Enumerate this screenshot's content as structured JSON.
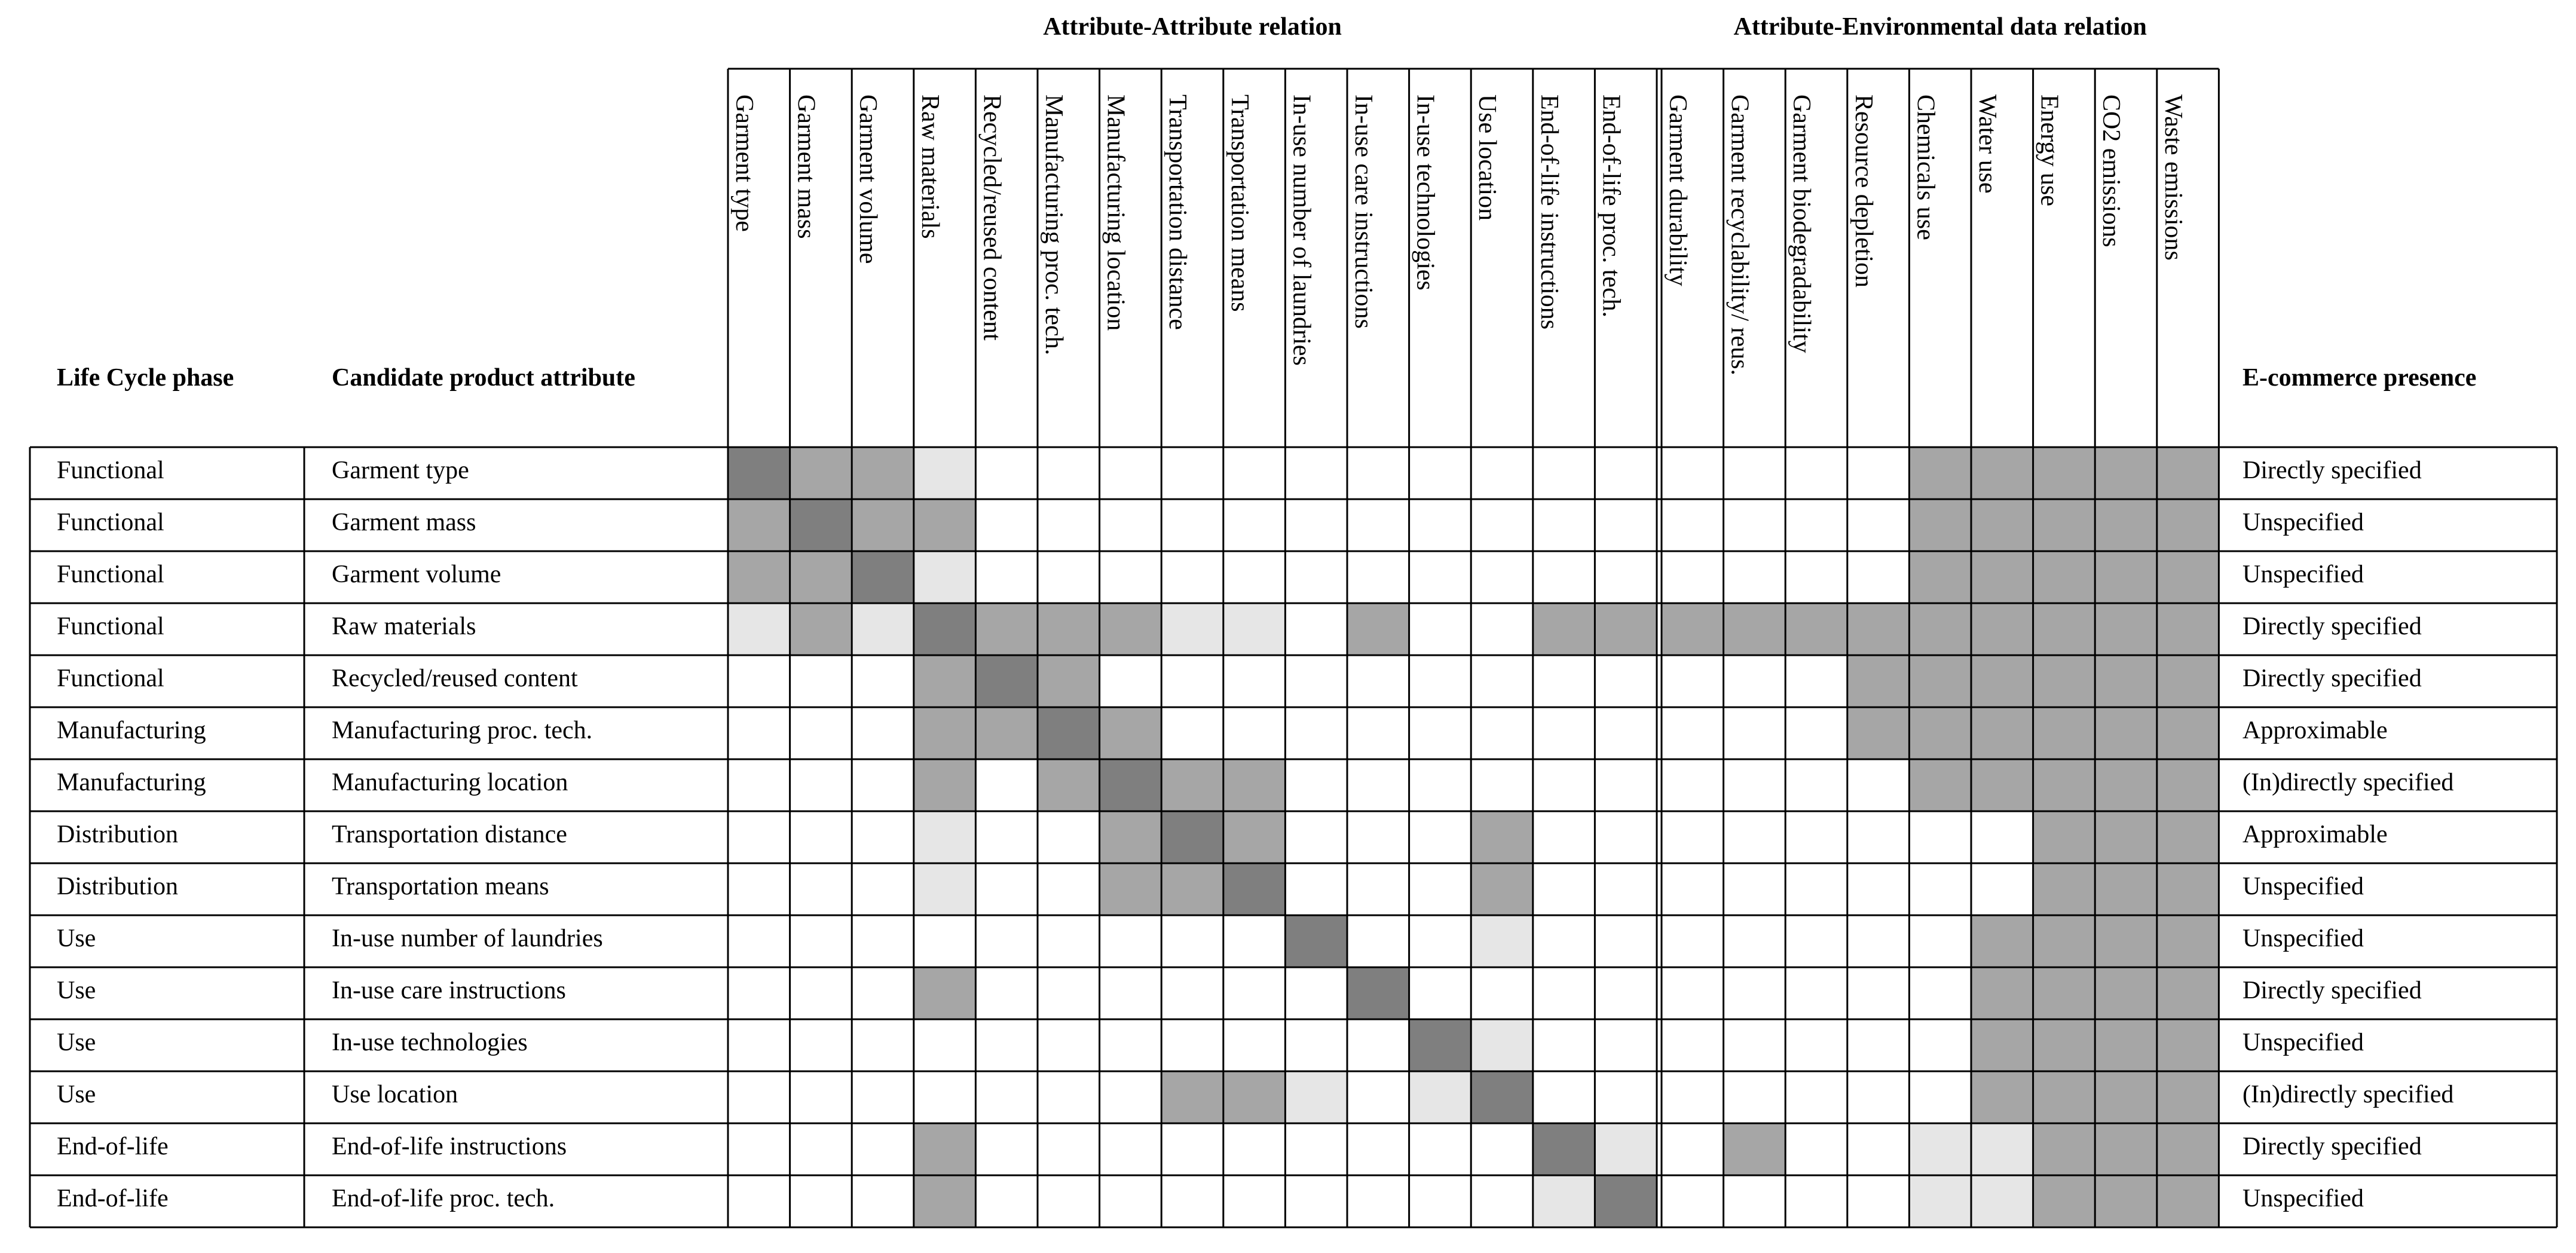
{
  "header": {
    "group_titles": [
      "Attribute-Attribute relation",
      "Attribute-Environmental data relation"
    ],
    "row_headers": [
      "Life Cycle phase",
      "Candidate product attribute"
    ],
    "last_header": "E-commerce presence",
    "attribute_columns": [
      "Garment type",
      "Garment mass",
      "Garment volume",
      "Raw materials",
      "Recycled/reused content",
      "Manufacturing proc. tech.",
      "Manufacturing location",
      "Transportation distance",
      "Transportation means",
      "In-use number of laundries",
      "In-use care instructions",
      "In-use technologies",
      "Use location",
      "End-of-life instructions",
      "End-of-life proc. tech."
    ],
    "environmental_columns": [
      "Garment durability",
      "Garment recyclability/ reus.",
      "Garment biodegradability",
      "Resource depletion",
      "Chemicals use",
      "Water use",
      "Energy use",
      "CO2 emissions",
      "Waste emissions"
    ]
  },
  "table": {
    "rows": [
      {
        "phase": "Functional",
        "attribute": "Garment type",
        "presence": "Directly specified",
        "cells": [
          "#7f7f7f",
          "#a6a6a6",
          "#a6a6a6",
          "#e6e6e6",
          "#ffffff",
          "#ffffff",
          "#ffffff",
          "#ffffff",
          "#ffffff",
          "#ffffff",
          "#ffffff",
          "#ffffff",
          "#ffffff",
          "#ffffff",
          "#ffffff",
          "#ffffff",
          "#ffffff",
          "#ffffff",
          "#ffffff",
          "#a6a6a6",
          "#a6a6a6",
          "#a6a6a6",
          "#a6a6a6",
          "#a6a6a6"
        ]
      },
      {
        "phase": "Functional",
        "attribute": "Garment mass",
        "presence": "Unspecified",
        "cells": [
          "#a6a6a6",
          "#7f7f7f",
          "#a6a6a6",
          "#a6a6a6",
          "#ffffff",
          "#ffffff",
          "#ffffff",
          "#ffffff",
          "#ffffff",
          "#ffffff",
          "#ffffff",
          "#ffffff",
          "#ffffff",
          "#ffffff",
          "#ffffff",
          "#ffffff",
          "#ffffff",
          "#ffffff",
          "#ffffff",
          "#a6a6a6",
          "#a6a6a6",
          "#a6a6a6",
          "#a6a6a6",
          "#a6a6a6"
        ]
      },
      {
        "phase": "Functional",
        "attribute": "Garment volume",
        "presence": "Unspecified",
        "cells": [
          "#a6a6a6",
          "#a6a6a6",
          "#7f7f7f",
          "#e6e6e6",
          "#ffffff",
          "#ffffff",
          "#ffffff",
          "#ffffff",
          "#ffffff",
          "#ffffff",
          "#ffffff",
          "#ffffff",
          "#ffffff",
          "#ffffff",
          "#ffffff",
          "#ffffff",
          "#ffffff",
          "#ffffff",
          "#ffffff",
          "#a6a6a6",
          "#a6a6a6",
          "#a6a6a6",
          "#a6a6a6",
          "#a6a6a6"
        ]
      },
      {
        "phase": "Functional",
        "attribute": "Raw materials",
        "presence": "Directly specified",
        "cells": [
          "#e6e6e6",
          "#a6a6a6",
          "#e6e6e6",
          "#7f7f7f",
          "#a6a6a6",
          "#a6a6a6",
          "#a6a6a6",
          "#e6e6e6",
          "#e6e6e6",
          "#ffffff",
          "#a6a6a6",
          "#ffffff",
          "#ffffff",
          "#a6a6a6",
          "#a6a6a6",
          "#a6a6a6",
          "#a6a6a6",
          "#a6a6a6",
          "#a6a6a6",
          "#a6a6a6",
          "#a6a6a6",
          "#a6a6a6",
          "#a6a6a6",
          "#a6a6a6"
        ]
      },
      {
        "phase": "Functional",
        "attribute": "Recycled/reused content",
        "presence": "Directly specified",
        "cells": [
          "#ffffff",
          "#ffffff",
          "#ffffff",
          "#a6a6a6",
          "#7f7f7f",
          "#a6a6a6",
          "#ffffff",
          "#ffffff",
          "#ffffff",
          "#ffffff",
          "#ffffff",
          "#ffffff",
          "#ffffff",
          "#ffffff",
          "#ffffff",
          "#ffffff",
          "#ffffff",
          "#ffffff",
          "#a6a6a6",
          "#a6a6a6",
          "#a6a6a6",
          "#a6a6a6",
          "#a6a6a6",
          "#a6a6a6"
        ]
      },
      {
        "phase": "Manufacturing",
        "attribute": "Manufacturing proc. tech.",
        "presence": "Approximable",
        "cells": [
          "#ffffff",
          "#ffffff",
          "#ffffff",
          "#a6a6a6",
          "#a6a6a6",
          "#7f7f7f",
          "#a6a6a6",
          "#ffffff",
          "#ffffff",
          "#ffffff",
          "#ffffff",
          "#ffffff",
          "#ffffff",
          "#ffffff",
          "#ffffff",
          "#ffffff",
          "#ffffff",
          "#ffffff",
          "#a6a6a6",
          "#a6a6a6",
          "#a6a6a6",
          "#a6a6a6",
          "#a6a6a6",
          "#a6a6a6"
        ]
      },
      {
        "phase": "Manufacturing",
        "attribute": "Manufacturing location",
        "presence": "(In)directly specified",
        "cells": [
          "#ffffff",
          "#ffffff",
          "#ffffff",
          "#a6a6a6",
          "#ffffff",
          "#a6a6a6",
          "#7f7f7f",
          "#a6a6a6",
          "#a6a6a6",
          "#ffffff",
          "#ffffff",
          "#ffffff",
          "#ffffff",
          "#ffffff",
          "#ffffff",
          "#ffffff",
          "#ffffff",
          "#ffffff",
          "#ffffff",
          "#a6a6a6",
          "#a6a6a6",
          "#a6a6a6",
          "#a6a6a6",
          "#a6a6a6"
        ]
      },
      {
        "phase": "Distribution",
        "attribute": "Transportation distance",
        "presence": "Approximable",
        "cells": [
          "#ffffff",
          "#ffffff",
          "#ffffff",
          "#e6e6e6",
          "#ffffff",
          "#ffffff",
          "#a6a6a6",
          "#7f7f7f",
          "#a6a6a6",
          "#ffffff",
          "#ffffff",
          "#ffffff",
          "#a6a6a6",
          "#ffffff",
          "#ffffff",
          "#ffffff",
          "#ffffff",
          "#ffffff",
          "#ffffff",
          "#ffffff",
          "#ffffff",
          "#a6a6a6",
          "#a6a6a6",
          "#a6a6a6"
        ]
      },
      {
        "phase": "Distribution",
        "attribute": "Transportation means",
        "presence": "Unspecified",
        "cells": [
          "#ffffff",
          "#ffffff",
          "#ffffff",
          "#e6e6e6",
          "#ffffff",
          "#ffffff",
          "#a6a6a6",
          "#a6a6a6",
          "#7f7f7f",
          "#ffffff",
          "#ffffff",
          "#ffffff",
          "#a6a6a6",
          "#ffffff",
          "#ffffff",
          "#ffffff",
          "#ffffff",
          "#ffffff",
          "#ffffff",
          "#ffffff",
          "#ffffff",
          "#a6a6a6",
          "#a6a6a6",
          "#a6a6a6"
        ]
      },
      {
        "phase": "Use",
        "attribute": "In-use number of laundries",
        "presence": "Unspecified",
        "cells": [
          "#ffffff",
          "#ffffff",
          "#ffffff",
          "#ffffff",
          "#ffffff",
          "#ffffff",
          "#ffffff",
          "#ffffff",
          "#ffffff",
          "#7f7f7f",
          "#ffffff",
          "#ffffff",
          "#e6e6e6",
          "#ffffff",
          "#ffffff",
          "#ffffff",
          "#ffffff",
          "#ffffff",
          "#ffffff",
          "#ffffff",
          "#a6a6a6",
          "#a6a6a6",
          "#a6a6a6",
          "#a6a6a6"
        ]
      },
      {
        "phase": "Use",
        "attribute": "In-use care instructions",
        "presence": "Directly specified",
        "cells": [
          "#ffffff",
          "#ffffff",
          "#ffffff",
          "#a6a6a6",
          "#ffffff",
          "#ffffff",
          "#ffffff",
          "#ffffff",
          "#ffffff",
          "#ffffff",
          "#7f7f7f",
          "#ffffff",
          "#ffffff",
          "#ffffff",
          "#ffffff",
          "#ffffff",
          "#ffffff",
          "#ffffff",
          "#ffffff",
          "#ffffff",
          "#a6a6a6",
          "#a6a6a6",
          "#a6a6a6",
          "#a6a6a6"
        ]
      },
      {
        "phase": "Use",
        "attribute": "In-use technologies",
        "presence": "Unspecified",
        "cells": [
          "#ffffff",
          "#ffffff",
          "#ffffff",
          "#ffffff",
          "#ffffff",
          "#ffffff",
          "#ffffff",
          "#ffffff",
          "#ffffff",
          "#ffffff",
          "#ffffff",
          "#7f7f7f",
          "#e6e6e6",
          "#ffffff",
          "#ffffff",
          "#ffffff",
          "#ffffff",
          "#ffffff",
          "#ffffff",
          "#ffffff",
          "#a6a6a6",
          "#a6a6a6",
          "#a6a6a6",
          "#a6a6a6"
        ]
      },
      {
        "phase": "Use",
        "attribute": "Use location",
        "presence": "(In)directly specified",
        "cells": [
          "#ffffff",
          "#ffffff",
          "#ffffff",
          "#ffffff",
          "#ffffff",
          "#ffffff",
          "#ffffff",
          "#a6a6a6",
          "#a6a6a6",
          "#e6e6e6",
          "#ffffff",
          "#e6e6e6",
          "#7f7f7f",
          "#ffffff",
          "#ffffff",
          "#ffffff",
          "#ffffff",
          "#ffffff",
          "#ffffff",
          "#ffffff",
          "#a6a6a6",
          "#a6a6a6",
          "#a6a6a6",
          "#a6a6a6"
        ]
      },
      {
        "phase": "End-of-life",
        "attribute": "End-of-life instructions",
        "presence": "Directly specified",
        "cells": [
          "#ffffff",
          "#ffffff",
          "#ffffff",
          "#a6a6a6",
          "#ffffff",
          "#ffffff",
          "#ffffff",
          "#ffffff",
          "#ffffff",
          "#ffffff",
          "#ffffff",
          "#ffffff",
          "#ffffff",
          "#7f7f7f",
          "#e6e6e6",
          "#ffffff",
          "#a6a6a6",
          "#ffffff",
          "#ffffff",
          "#e6e6e6",
          "#e6e6e6",
          "#a6a6a6",
          "#a6a6a6",
          "#a6a6a6"
        ]
      },
      {
        "phase": "End-of-life",
        "attribute": "End-of-life proc. tech.",
        "presence": "Unspecified",
        "cells": [
          "#ffffff",
          "#ffffff",
          "#ffffff",
          "#a6a6a6",
          "#ffffff",
          "#ffffff",
          "#ffffff",
          "#ffffff",
          "#ffffff",
          "#ffffff",
          "#ffffff",
          "#ffffff",
          "#ffffff",
          "#e6e6e6",
          "#7f7f7f",
          "#ffffff",
          "#ffffff",
          "#ffffff",
          "#ffffff",
          "#e6e6e6",
          "#e6e6e6",
          "#a6a6a6",
          "#a6a6a6",
          "#a6a6a6"
        ]
      }
    ]
  }
}
